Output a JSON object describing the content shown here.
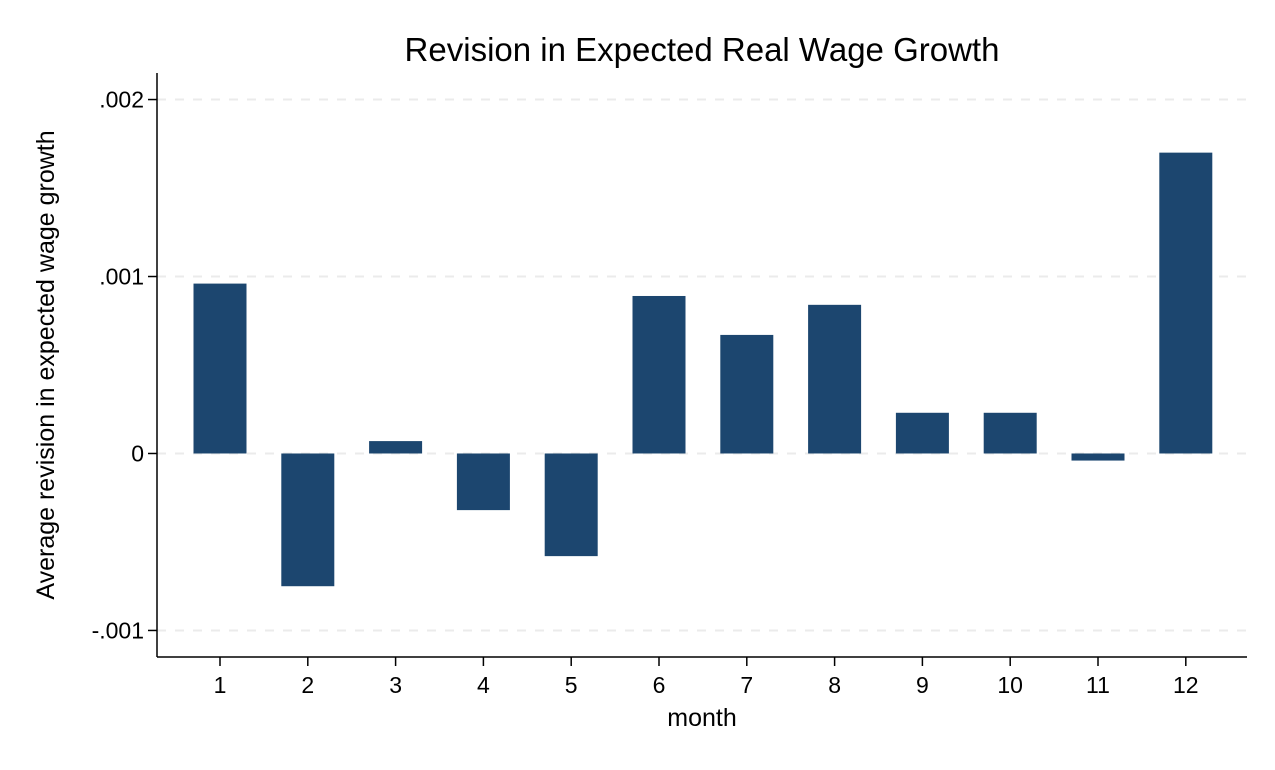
{
  "chart_data": {
    "type": "bar",
    "title": "Revision in Expected Real Wage Growth",
    "xlabel": "month",
    "ylabel": "Average revision in expected wage growth",
    "categories": [
      "1",
      "2",
      "3",
      "4",
      "5",
      "6",
      "7",
      "8",
      "9",
      "10",
      "11",
      "12"
    ],
    "values": [
      0.00096,
      -0.00075,
      7e-05,
      -0.00032,
      -0.00058,
      0.00089,
      0.00067,
      0.00084,
      0.00023,
      0.00023,
      -4e-05,
      0.0017
    ],
    "ylim": [
      -0.00115,
      0.00215
    ],
    "yticks": [
      {
        "value": 0.002,
        "label": ".002"
      },
      {
        "value": 0.001,
        "label": ".001"
      },
      {
        "value": 0,
        "label": "0"
      },
      {
        "value": -0.001,
        "label": "-.001"
      }
    ],
    "grid": true,
    "legend": "none",
    "colors": {
      "bar": "#1c466f",
      "grid": "#ebebeb",
      "axis": "#000000"
    }
  }
}
